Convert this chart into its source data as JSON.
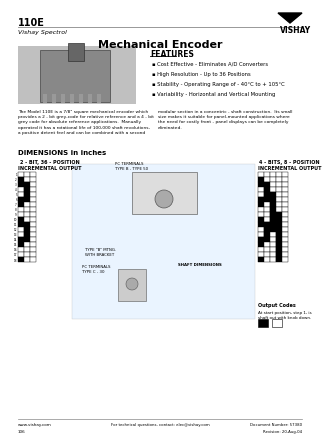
{
  "title_main": "110E",
  "subtitle_company": "Vishay Spectrol",
  "title_product": "Mechanical Encoder",
  "features_title": "FEATURES",
  "features": [
    "Cost Effective - Eliminates A/D Converters",
    "High Resolution - Up to 36 Positions",
    "Stability - Operating Range of - 40°C to + 105°C",
    "Variability - Horizontal and Vertical Mounting"
  ],
  "description_left": "The Model 110E is a 7/8\" square mechanical encoder which\nprovides a 2 - bit grey-code for relative reference and a 4 - bit\ngrey code for absolute reference applications.  Manually\noperated it has a rotational life of 100,000 shaft revolutions,\na positive detent feel and can be combined with a second",
  "description_right": "modular section in a concentric - shaft construction.  Its small\nsize makes it suitable for panel-mounted applications where\nthe need for costly front - panel displays can be completely\neliminated.",
  "dimensions_title": "DIMENSIONS in inches",
  "left_table_title": "2 - BIT, 36 - POSITION\nINCREMENTAL OUTPUT",
  "right_table_title": "4 - BITS, 8 - POSITION\nINCREMENTAL OUTPUT",
  "output_codes_title": "Output Codes",
  "output_codes_desc": "At start position, step 1, is\nshaft out with knob down.",
  "footer_left": "www.vishay.com",
  "footer_center": "For technical questions, contact: elec@vishay.com",
  "footer_doc": "Document Number: 57380",
  "footer_rev": "Revision: 20-Aug-04",
  "footer_page": "106",
  "bg_color": "#ffffff",
  "header_line_color": "#888888",
  "text_color": "#000000"
}
